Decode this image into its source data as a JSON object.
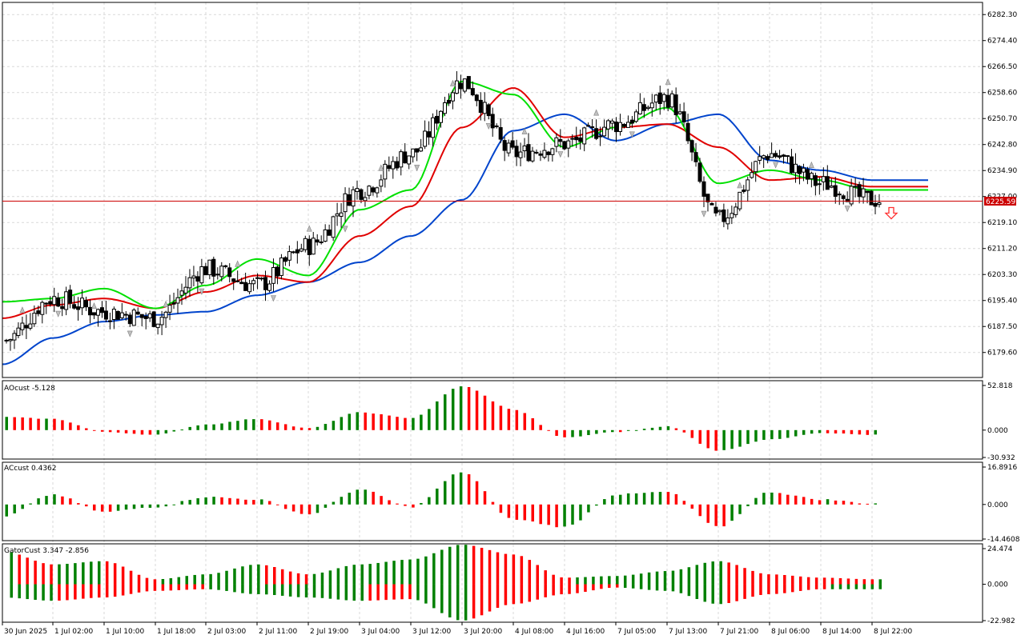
{
  "colors": {
    "grid": "#d9d9d9",
    "frame": "#000000",
    "candle": "#000000",
    "ma_fast": "#00e000",
    "ma_mid": "#e00000",
    "ma_slow": "#0044cc",
    "hist_up": "#008000",
    "hist_down": "#ff0000",
    "price_line": "#cc0000",
    "price_label_bg": "#cc0000",
    "price_label_text": "#ffffff",
    "arrow": "#ff3030"
  },
  "x_axis": {
    "labels": [
      "30 Jun 2025",
      "1 Jul 02:00",
      "1 Jul 10:00",
      "1 Jul 18:00",
      "2 Jul 03:00",
      "2 Jul 11:00",
      "2 Jul 19:00",
      "3 Jul 04:00",
      "3 Jul 12:00",
      "3 Jul 20:00",
      "4 Jul 08:00",
      "4 Jul 16:00",
      "7 Jul 05:00",
      "7 Jul 13:00",
      "7 Jul 21:00",
      "8 Jul 06:00",
      "8 Jul 14:00",
      "8 Jul 22:00"
    ]
  },
  "main_panel": {
    "current_price_label": "6225.59",
    "ticks": [
      "6282.30",
      "6274.40",
      "6266.50",
      "6258.60",
      "6250.70",
      "6242.80",
      "6234.90",
      "6227.00",
      "6219.10",
      "6211.20",
      "6203.30",
      "6195.40",
      "6187.50",
      "6179.60"
    ]
  },
  "indicators": {
    "ao": {
      "title": "AOcust -5.128",
      "ticks": [
        "52.818",
        "0.000",
        "-30.932"
      ]
    },
    "ac": {
      "title": "ACcust 0.4362",
      "ticks": [
        "16.8916",
        "0.000",
        "-14.4608"
      ]
    },
    "gator": {
      "title": "GatorCust 3.347 -2.856",
      "ticks": [
        "24.474",
        "0.000",
        "-22.982"
      ]
    }
  },
  "chart_data": [
    {
      "type": "candlestick",
      "title": "",
      "ylim": [
        6172,
        6286
      ],
      "current_price": 6225.59,
      "series_names": [],
      "x": [
        "30 Jun 2025",
        "1 Jul 02:00",
        "1 Jul 10:00",
        "1 Jul 18:00",
        "2 Jul 03:00",
        "2 Jul 11:00",
        "2 Jul 19:00",
        "3 Jul 04:00",
        "3 Jul 12:00",
        "3 Jul 20:00",
        "4 Jul 08:00",
        "4 Jul 16:00",
        "7 Jul 05:00",
        "7 Jul 13:00",
        "7 Jul 21:00",
        "8 Jul 06:00",
        "8 Jul 14:00",
        "8 Jul 22:00"
      ],
      "close_anchor": [
        6183,
        6196,
        6192,
        6190,
        6205,
        6200,
        6212,
        6229,
        6240,
        6262,
        6240,
        6243,
        6249,
        6257,
        6220,
        6240,
        6231,
        6226
      ],
      "ma_fast_anchor": [
        6195,
        6196,
        6199,
        6193,
        6200,
        6208,
        6203,
        6223,
        6229,
        6262,
        6258,
        6242,
        6248,
        6254,
        6231,
        6235,
        6232,
        6229
      ],
      "ma_mid_anchor": [
        6190,
        6194,
        6196,
        6193,
        6198,
        6203,
        6201,
        6215,
        6224,
        6248,
        6260,
        6245,
        6248,
        6249,
        6242,
        6232,
        6233,
        6230
      ],
      "ma_slow_anchor": [
        6176,
        6184,
        6189,
        6191,
        6192,
        6197,
        6201,
        6207,
        6215,
        6226,
        6247,
        6252,
        6244,
        6249,
        6252,
        6238,
        6235,
        6232
      ]
    },
    {
      "type": "bar",
      "title": "AOcust",
      "ylim": [
        -30.932,
        52.818
      ],
      "anchor_x": [
        "30 Jun 2025",
        "1 Jul 02:00",
        "1 Jul 10:00",
        "1 Jul 18:00",
        "2 Jul 03:00",
        "2 Jul 11:00",
        "2 Jul 19:00",
        "3 Jul 04:00",
        "3 Jul 12:00",
        "3 Jul 20:00",
        "4 Jul 08:00",
        "4 Jul 16:00",
        "7 Jul 05:00",
        "7 Jul 13:00",
        "7 Jul 21:00",
        "8 Jul 06:00",
        "8 Jul 14:00",
        "8 Jul 22:00"
      ],
      "anchor_values": [
        14,
        12,
        -2,
        -5,
        6,
        12,
        2,
        19,
        13,
        47,
        22,
        -8,
        -2,
        4,
        -22,
        -10,
        -3,
        -5
      ]
    },
    {
      "type": "bar",
      "title": "ACcust",
      "ylim": [
        -14.4608,
        16.8916
      ],
      "anchor_x": [
        "30 Jun 2025",
        "1 Jul 02:00",
        "1 Jul 10:00",
        "1 Jul 18:00",
        "2 Jul 03:00",
        "2 Jul 11:00",
        "2 Jul 19:00",
        "3 Jul 04:00",
        "3 Jul 12:00",
        "3 Jul 20:00",
        "4 Jul 08:00",
        "4 Jul 16:00",
        "7 Jul 05:00",
        "7 Jul 13:00",
        "7 Jul 21:00",
        "8 Jul 06:00",
        "8 Jul 14:00",
        "8 Jul 22:00"
      ],
      "anchor_values": [
        -5,
        4,
        -3,
        -1,
        3,
        2,
        -4,
        6,
        -1,
        13,
        -6,
        -9,
        4,
        5,
        -9,
        5,
        2,
        0.4
      ]
    },
    {
      "type": "bar",
      "title": "GatorCust",
      "ylim": [
        -22.982,
        24.474
      ],
      "anchor_x": [
        "30 Jun 2025",
        "1 Jul 02:00",
        "1 Jul 10:00",
        "1 Jul 18:00",
        "2 Jul 03:00",
        "2 Jul 11:00",
        "2 Jul 19:00",
        "3 Jul 04:00",
        "3 Jul 12:00",
        "3 Jul 20:00",
        "4 Jul 08:00",
        "4 Jul 16:00",
        "7 Jul 05:00",
        "7 Jul 13:00",
        "7 Jul 21:00",
        "8 Jul 06:00",
        "8 Jul 14:00",
        "8 Jul 22:00"
      ],
      "upper_anchor": [
        20,
        12,
        14,
        3,
        6,
        12,
        6,
        12,
        15,
        24,
        18,
        4,
        5,
        8,
        14,
        6,
        4,
        3
      ],
      "lower_anchor": [
        -8,
        -10,
        -8,
        -4,
        -3,
        -6,
        -8,
        -10,
        -9,
        -22,
        -12,
        -6,
        -2,
        -4,
        -12,
        -6,
        -3,
        -3
      ]
    }
  ]
}
